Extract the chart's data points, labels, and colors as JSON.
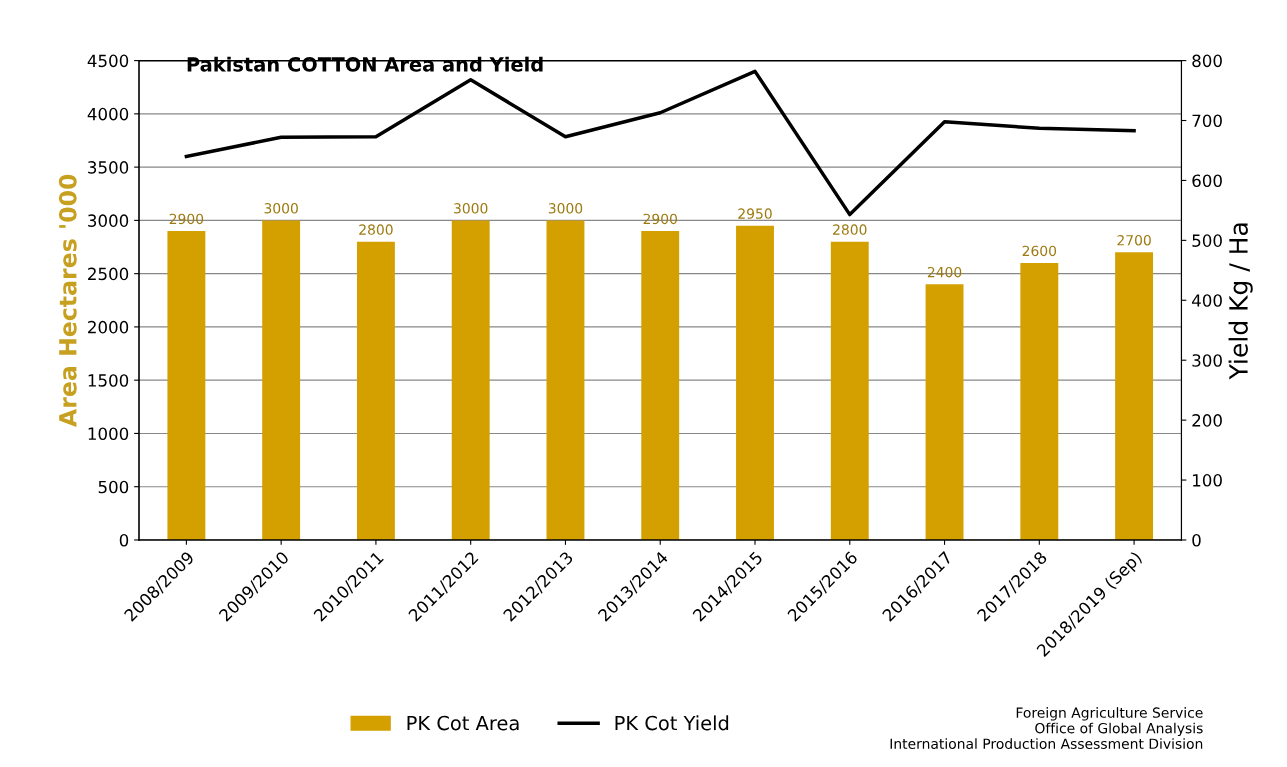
{
  "chart_data": {
    "type": "bar",
    "title": "Pakistan COTTON Area and Yield",
    "categories": [
      "2008/2009",
      "2009/2010",
      "2010/2011",
      "2011/2012",
      "2012/2013",
      "2013/2014",
      "2014/2015",
      "2015/2016",
      "2016/2017",
      "2017/2018",
      "2018/2019 (Sep)"
    ],
    "series": [
      {
        "name": "PK Cot Area",
        "color": "#d4a000",
        "values": [
          2900,
          3000,
          2800,
          3000,
          3000,
          2900,
          2950,
          2800,
          2400,
          2600,
          2700
        ],
        "value_labels": [
          "2900",
          "3000",
          "2800",
          "3000",
          "3000",
          "2900",
          "2950",
          "2800",
          "2400",
          "2600",
          "2700"
        ]
      },
      {
        "name": "PK Cot Yield",
        "type": "line",
        "axis": "y2",
        "color": "#000000",
        "values": [
          640,
          672,
          673,
          768,
          673,
          713,
          782,
          543,
          698,
          687,
          683
        ]
      }
    ],
    "ylabel": "Area Hectares '000",
    "y2label": "Yield Kg / Ha",
    "ylim": [
      0,
      4500
    ],
    "yticks": [
      0,
      500,
      1000,
      1500,
      2000,
      2500,
      3000,
      3500,
      4000,
      4500
    ],
    "y2lim": [
      0,
      800
    ],
    "y2ticks": [
      0,
      100,
      200,
      300,
      400,
      500,
      600,
      700,
      800
    ],
    "grid": "y",
    "legend": "bottom",
    "marker": "none",
    "line_style": "solid",
    "annotations": [
      "Foreign Agriculture Service\nOffice of Global Analysis\nInternational Production Assessment Division"
    ]
  }
}
